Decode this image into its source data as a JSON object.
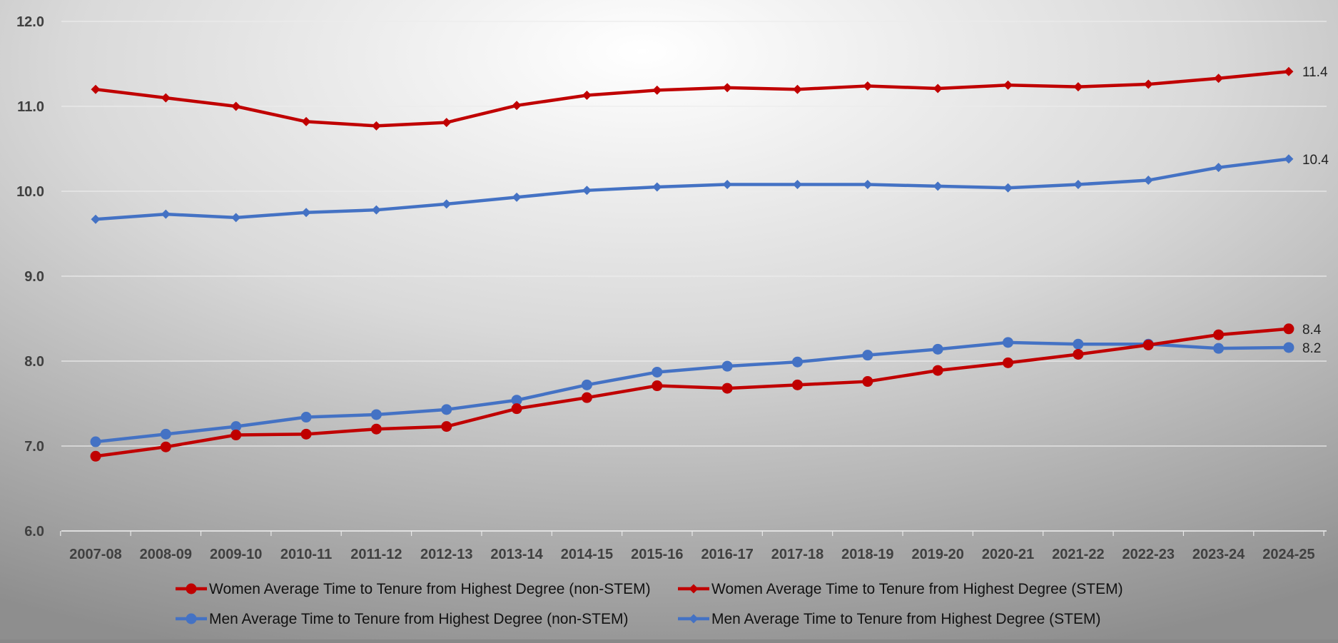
{
  "chart_data": {
    "type": "line",
    "title": "",
    "xlabel": "",
    "ylabel": "",
    "ylim": [
      6.0,
      12.0
    ],
    "yticks": [
      "6.0",
      "7.0",
      "8.0",
      "9.0",
      "10.0",
      "11.0",
      "12.0"
    ],
    "grid": "horizontal",
    "legend_position": "bottom",
    "categories": [
      "2007-08",
      "2008-09",
      "2009-10",
      "2010-11",
      "2011-12",
      "2012-13",
      "2013-14",
      "2014-15",
      "2015-16",
      "2016-17",
      "2017-18",
      "2018-19",
      "2019-20",
      "2020-21",
      "2021-22",
      "2022-23",
      "2023-24",
      "2024-25"
    ],
    "series": [
      {
        "name": "Women Average Time to Tenure from Highest Degree (non-STEM)",
        "color": "#C00000",
        "marker": "circle",
        "values": [
          6.88,
          6.99,
          7.13,
          7.14,
          7.2,
          7.23,
          7.44,
          7.57,
          7.71,
          7.68,
          7.72,
          7.76,
          7.89,
          7.98,
          8.08,
          8.19,
          8.31,
          8.38
        ],
        "end_label": "8.4"
      },
      {
        "name": "Women Average Time to Tenure from Highest Degree (STEM)",
        "color": "#C00000",
        "marker": "diamond",
        "values": [
          11.2,
          11.1,
          11.0,
          10.82,
          10.77,
          10.81,
          11.01,
          11.13,
          11.19,
          11.22,
          11.2,
          11.24,
          11.21,
          11.25,
          11.23,
          11.26,
          11.33,
          11.41
        ],
        "end_label": "11.4"
      },
      {
        "name": "Men Average Time to Tenure from Highest Degree (non-STEM)",
        "color": "#4472C4",
        "marker": "circle",
        "values": [
          7.05,
          7.14,
          7.23,
          7.34,
          7.37,
          7.43,
          7.54,
          7.72,
          7.87,
          7.94,
          7.99,
          8.07,
          8.14,
          8.22,
          8.2,
          8.2,
          8.15,
          8.16
        ],
        "end_label": "8.2"
      },
      {
        "name": "Men Average Time to Tenure from Highest Degree (STEM)",
        "color": "#4472C4",
        "marker": "diamond",
        "values": [
          9.67,
          9.73,
          9.69,
          9.75,
          9.78,
          9.85,
          9.93,
          10.01,
          10.05,
          10.08,
          10.08,
          10.08,
          10.06,
          10.04,
          10.08,
          10.13,
          10.28,
          10.38
        ],
        "end_label": "10.4"
      }
    ]
  }
}
